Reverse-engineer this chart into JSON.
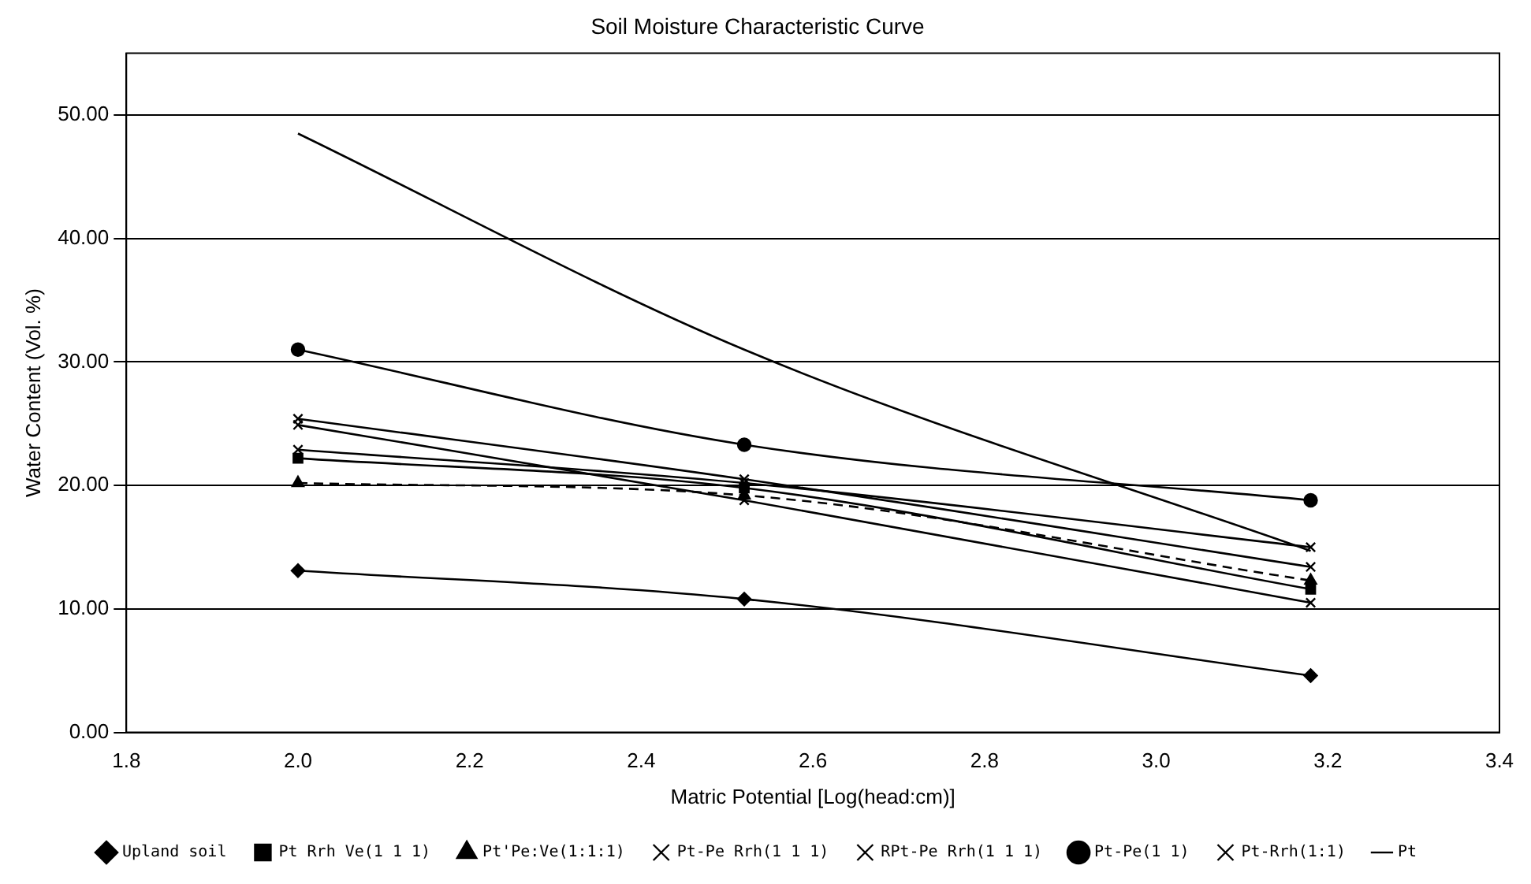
{
  "chart_data": {
    "type": "line",
    "title": "Soil Moisture Characteristic Curve",
    "xlabel": "Matric Potential [Log(head:cm)]",
    "ylabel": "Water Content (Vol. %)",
    "x": [
      2.0,
      2.52,
      3.18
    ],
    "xlim": [
      1.8,
      3.4
    ],
    "xticks": [
      1.8,
      {
        "value": 2,
        "label": "2.0"
      },
      2.2,
      2.4,
      2.6,
      2.8,
      {
        "value": 3,
        "label": "3.0"
      },
      3.2,
      3.4
    ],
    "ylim": [
      0,
      55
    ],
    "yticks": [
      {
        "value": 0,
        "label": "0.00"
      },
      {
        "value": 10,
        "label": "10.00"
      },
      {
        "value": 20,
        "label": "20.00"
      },
      {
        "value": 30,
        "label": "30.00"
      },
      {
        "value": 40,
        "label": "40.00"
      },
      {
        "value": 50,
        "label": "50.00"
      }
    ],
    "grid": "y",
    "legend": "bottom",
    "series": [
      {
        "name": "Upland soil",
        "color": "#000000",
        "marker": "diamond",
        "values": [
          13.1,
          10.8,
          4.6
        ]
      },
      {
        "name": "Pt Rrh Ve(1 1 1)",
        "color": "#000000",
        "marker": "square",
        "values": [
          22.2,
          19.8,
          11.6
        ]
      },
      {
        "name": "Pt'Pe:Ve(1:1:1)",
        "color": "#000000",
        "marker": "triangle",
        "line_style": "dashed",
        "values": [
          20.2,
          19.2,
          12.3
        ]
      },
      {
        "name": "Pt-Pe Rrh(1 1 1)",
        "color": "#000000",
        "marker": "cross",
        "values": [
          25.4,
          20.5,
          13.4
        ]
      },
      {
        "name": "RPt-Pe Rrh(1 1 1)",
        "color": "#000000",
        "marker": "cross",
        "values": [
          22.9,
          20.2,
          15.0
        ]
      },
      {
        "name": "Pt-Pe(1 1)",
        "color": "#000000",
        "marker": "circle",
        "values": [
          31.0,
          23.3,
          18.8
        ]
      },
      {
        "name": "Pt-Rrh(1:1)",
        "color": "#000000",
        "marker": "cross",
        "values": [
          24.9,
          18.8,
          10.5
        ]
      },
      {
        "name": "Pt",
        "color": "#000000",
        "marker": "none",
        "values": [
          48.5,
          31.0,
          14.7
        ]
      }
    ]
  }
}
